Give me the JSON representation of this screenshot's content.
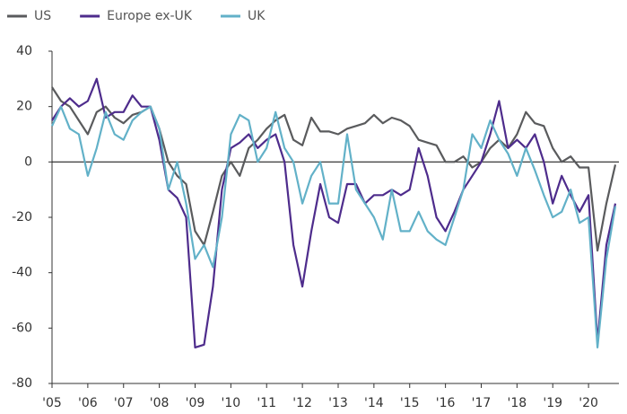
{
  "chart_data": {
    "type": "line",
    "x": [
      2005,
      2005.25,
      2005.5,
      2005.75,
      2006,
      2006.25,
      2006.5,
      2006.75,
      2007,
      2007.25,
      2007.5,
      2007.75,
      2008,
      2008.25,
      2008.5,
      2008.75,
      2009,
      2009.25,
      2009.5,
      2009.75,
      2010,
      2010.25,
      2010.5,
      2010.75,
      2011,
      2011.25,
      2011.5,
      2011.75,
      2012,
      2012.25,
      2012.5,
      2012.75,
      2013,
      2013.25,
      2013.5,
      2013.75,
      2014,
      2014.25,
      2014.5,
      2014.75,
      2015,
      2015.25,
      2015.5,
      2015.75,
      2016,
      2016.25,
      2016.5,
      2016.75,
      2017,
      2017.25,
      2017.5,
      2017.75,
      2018,
      2018.25,
      2018.5,
      2018.75,
      2019,
      2019.25,
      2019.5,
      2019.75,
      2020,
      2020.25,
      2020.5,
      2020.75
    ],
    "series": [
      {
        "name": "US",
        "color": "#5a5b5d",
        "values": [
          27,
          22,
          20,
          15,
          10,
          18,
          20,
          16,
          14,
          17,
          18,
          20,
          12,
          0,
          -5,
          -8,
          -25,
          -30,
          -18,
          -5,
          0,
          -5,
          5,
          8,
          12,
          15,
          17,
          8,
          6,
          16,
          11,
          11,
          10,
          12,
          13,
          14,
          17,
          14,
          16,
          15,
          13,
          8,
          7,
          6,
          0,
          0,
          2,
          -2,
          0,
          5,
          8,
          5,
          10,
          18,
          14,
          13,
          5,
          0,
          2,
          -2,
          -2,
          -32,
          -15,
          -1
        ]
      },
      {
        "name": "Europe ex-UK",
        "color": "#4e2c8c",
        "values": [
          15,
          20,
          23,
          20,
          22,
          30,
          16,
          18,
          18,
          24,
          20,
          20,
          8,
          -10,
          -13,
          -20,
          -67,
          -66,
          -45,
          -10,
          5,
          7,
          10,
          5,
          8,
          10,
          0,
          -30,
          -45,
          -25,
          -8,
          -20,
          -22,
          -8,
          -8,
          -15,
          -12,
          -12,
          -10,
          -12,
          -10,
          5,
          -5,
          -20,
          -25,
          -18,
          -10,
          -5,
          0,
          10,
          22,
          5,
          8,
          5,
          10,
          0,
          -15,
          -5,
          -12,
          -18,
          -12,
          -65,
          -30,
          -15
        ]
      },
      {
        "name": "UK",
        "color": "#62b1c8",
        "values": [
          13,
          20,
          12,
          10,
          -5,
          5,
          18,
          10,
          8,
          15,
          18,
          20,
          12,
          -10,
          0,
          -15,
          -35,
          -30,
          -38,
          -20,
          10,
          17,
          15,
          0,
          5,
          18,
          5,
          0,
          -15,
          -5,
          0,
          -15,
          -15,
          10,
          -10,
          -15,
          -20,
          -28,
          -10,
          -25,
          -25,
          -18,
          -25,
          -28,
          -30,
          -20,
          -10,
          10,
          5,
          15,
          8,
          3,
          -5,
          5,
          -3,
          -12,
          -20,
          -18,
          -10,
          -22,
          -20,
          -67,
          -35,
          -16
        ]
      }
    ],
    "xlim": [
      2005,
      2020.85
    ],
    "xticks": [
      {
        "value": 2005,
        "label": "'05"
      },
      {
        "value": 2006,
        "label": "'06"
      },
      {
        "value": 2007,
        "label": "'07"
      },
      {
        "value": 2008,
        "label": "'08"
      },
      {
        "value": 2009,
        "label": "'09"
      },
      {
        "value": 2010,
        "label": "'10"
      },
      {
        "value": 2011,
        "label": "'11"
      },
      {
        "value": 2012,
        "label": "'12"
      },
      {
        "value": 2013,
        "label": "'13"
      },
      {
        "value": 2014,
        "label": "'14"
      },
      {
        "value": 2015,
        "label": "'15"
      },
      {
        "value": 2016,
        "label": "'16"
      },
      {
        "value": 2017,
        "label": "'17"
      },
      {
        "value": 2018,
        "label": "'18"
      },
      {
        "value": 2019,
        "label": "'19"
      },
      {
        "value": 2020,
        "label": "'20"
      }
    ],
    "ylim": [
      -80,
      40
    ],
    "yticks": [
      -80,
      -60,
      -40,
      -20,
      0,
      20,
      40
    ],
    "legend": "top-left"
  }
}
